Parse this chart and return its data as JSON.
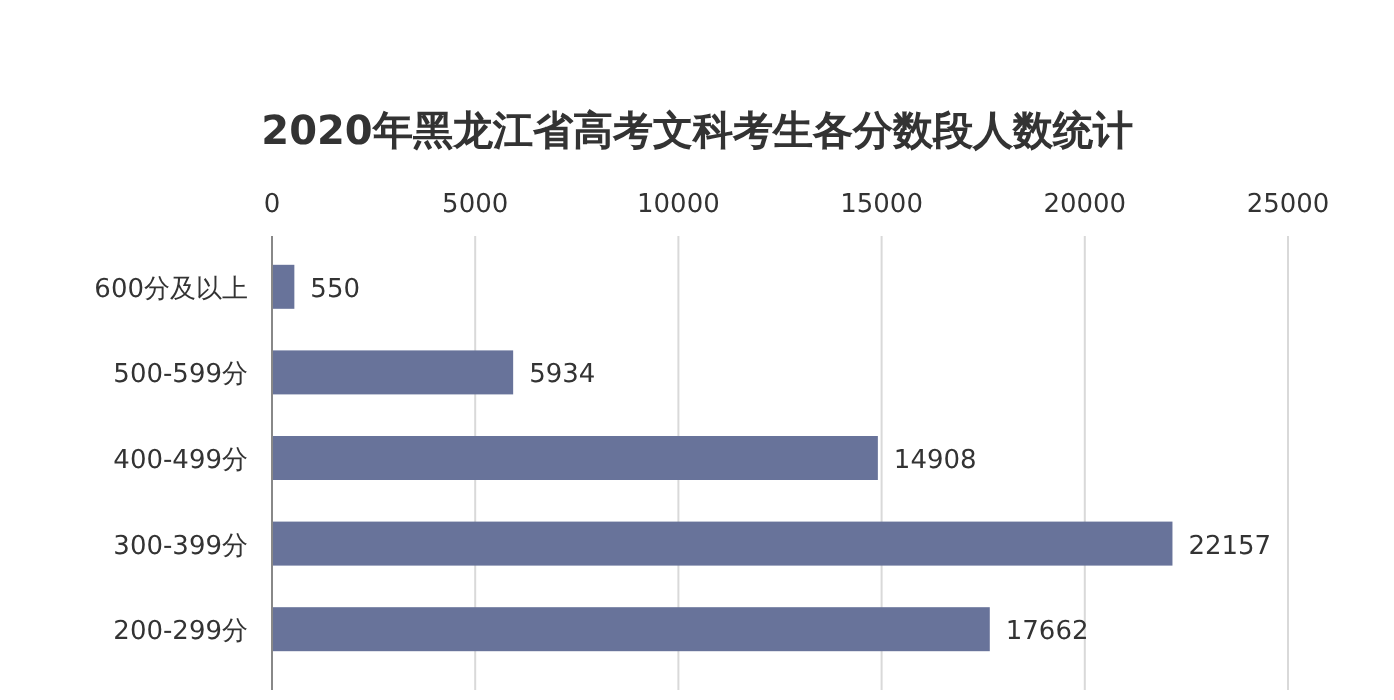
{
  "chart_data": {
    "type": "bar",
    "orientation": "horizontal",
    "title": "2020年黑龙江省高考文科考生各分数段人数统计",
    "categories": [
      "600分及以上",
      "500-599分",
      "400-499分",
      "300-399分",
      "200-299分"
    ],
    "values": [
      550,
      5934,
      14908,
      22157,
      17662
    ],
    "color": "#68739a",
    "xlim": [
      0,
      25000
    ],
    "xticks": [
      0,
      5000,
      10000,
      15000,
      20000,
      25000
    ],
    "grid": "x",
    "data_labels": true
  }
}
